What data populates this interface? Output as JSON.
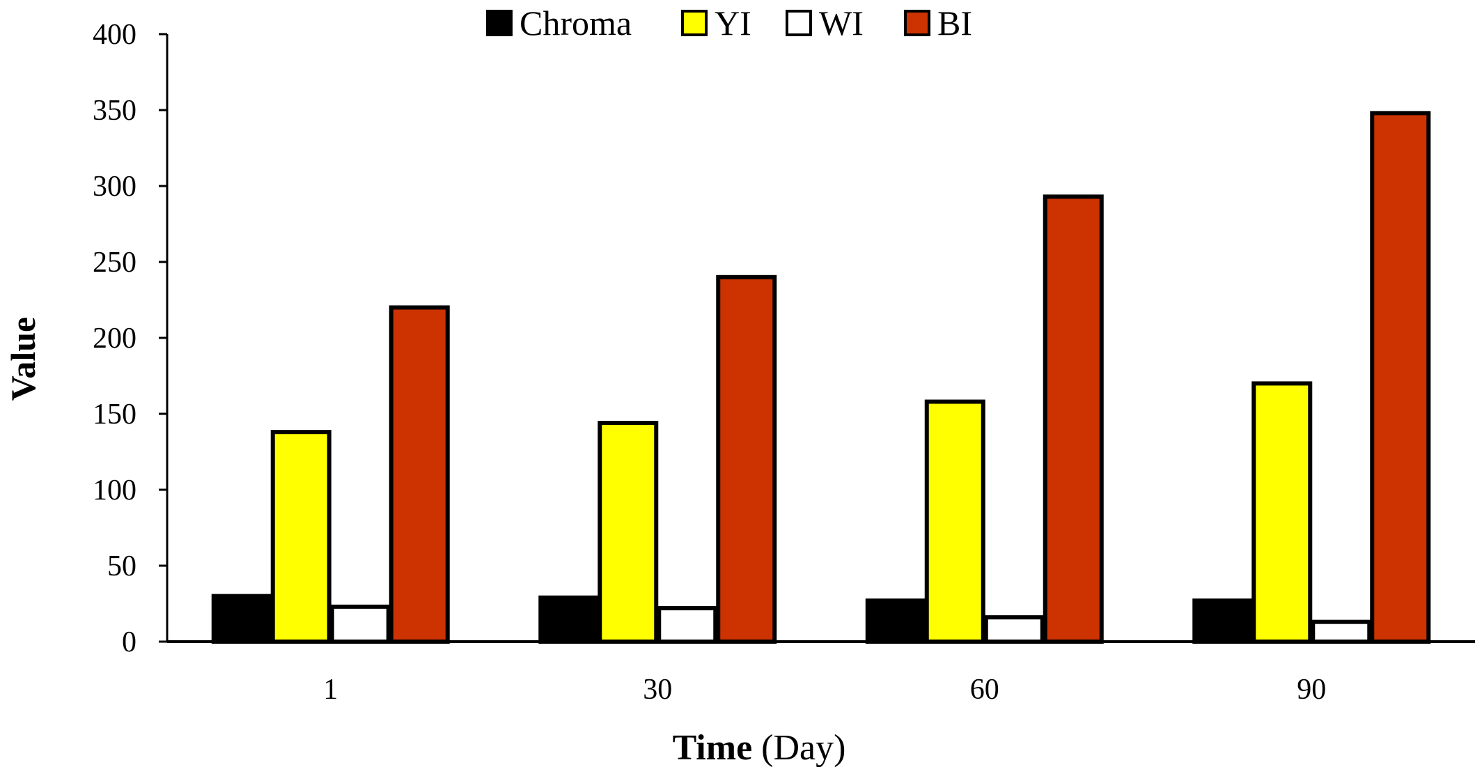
{
  "chart_data": {
    "type": "bar",
    "categories": [
      "1",
      "30",
      "60",
      "90"
    ],
    "series": [
      {
        "name": "Chroma",
        "color": "#000000",
        "values": [
          30,
          29,
          27,
          27
        ]
      },
      {
        "name": "YI",
        "color": "#FFFF00",
        "values": [
          138,
          144,
          158,
          170
        ]
      },
      {
        "name": "WI",
        "color": "#FFFFFF",
        "values": [
          23,
          22,
          16,
          13
        ]
      },
      {
        "name": "BI",
        "color": "#CC3300",
        "values": [
          220,
          240,
          293,
          348
        ]
      }
    ],
    "ylabel": "Value",
    "xlabel_bold": "Time",
    "xlabel_rest": " (Day)",
    "ylim": [
      0,
      400
    ],
    "yticks": [
      0,
      50,
      100,
      150,
      200,
      250,
      300,
      350,
      400
    ],
    "legend_position": "top-center",
    "grid": false
  }
}
